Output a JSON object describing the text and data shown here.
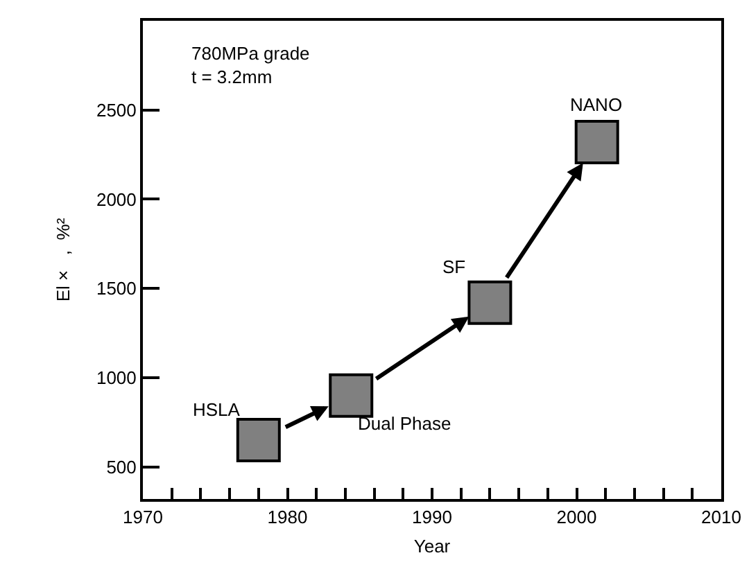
{
  "chart_data": {
    "type": "scatter",
    "xlabel": "Year",
    "ylabel": "El ×   ,  %²",
    "x": [
      1978,
      1984.4,
      1994,
      2001.4
    ],
    "values": [
      650,
      900,
      1420,
      2320
    ],
    "color": "#808080",
    "marker": "square",
    "grid": false,
    "xlim": [
      1970,
      2010
    ],
    "xticks": [
      1970,
      {
        "value": 1972,
        "label": null
      },
      {
        "value": 1974,
        "label": null
      },
      {
        "value": 1976,
        "label": null
      },
      {
        "value": 1978,
        "label": null
      },
      1980,
      {
        "value": 1982,
        "label": null
      },
      {
        "value": 1984,
        "label": null
      },
      {
        "value": 1986,
        "label": null
      },
      {
        "value": 1988,
        "label": null
      },
      1990,
      {
        "value": 1992,
        "label": null
      },
      {
        "value": 1994,
        "label": null
      },
      {
        "value": 1996,
        "label": null
      },
      {
        "value": 1998,
        "label": null
      },
      2000,
      {
        "value": 2002,
        "label": null
      },
      {
        "value": 2004,
        "label": null
      },
      {
        "value": 2006,
        "label": null
      },
      {
        "value": 2008,
        "label": null
      },
      2010
    ],
    "ylim": [
      320,
      3000
    ],
    "yticks": [
      500,
      1000,
      1500,
      2000,
      2500
    ],
    "annotations": [
      "780MPa grade\nt = 3.2mm",
      {
        "text": "HSLA",
        "x": 1978,
        "y": 650
      },
      {
        "text": "Dual Phase",
        "x": 1984.4,
        "y": 900
      },
      {
        "text": "SF",
        "x": 1994,
        "y": 1420
      },
      {
        "text": "NANO",
        "x": 2001.4,
        "y": 2320
      }
    ]
  }
}
